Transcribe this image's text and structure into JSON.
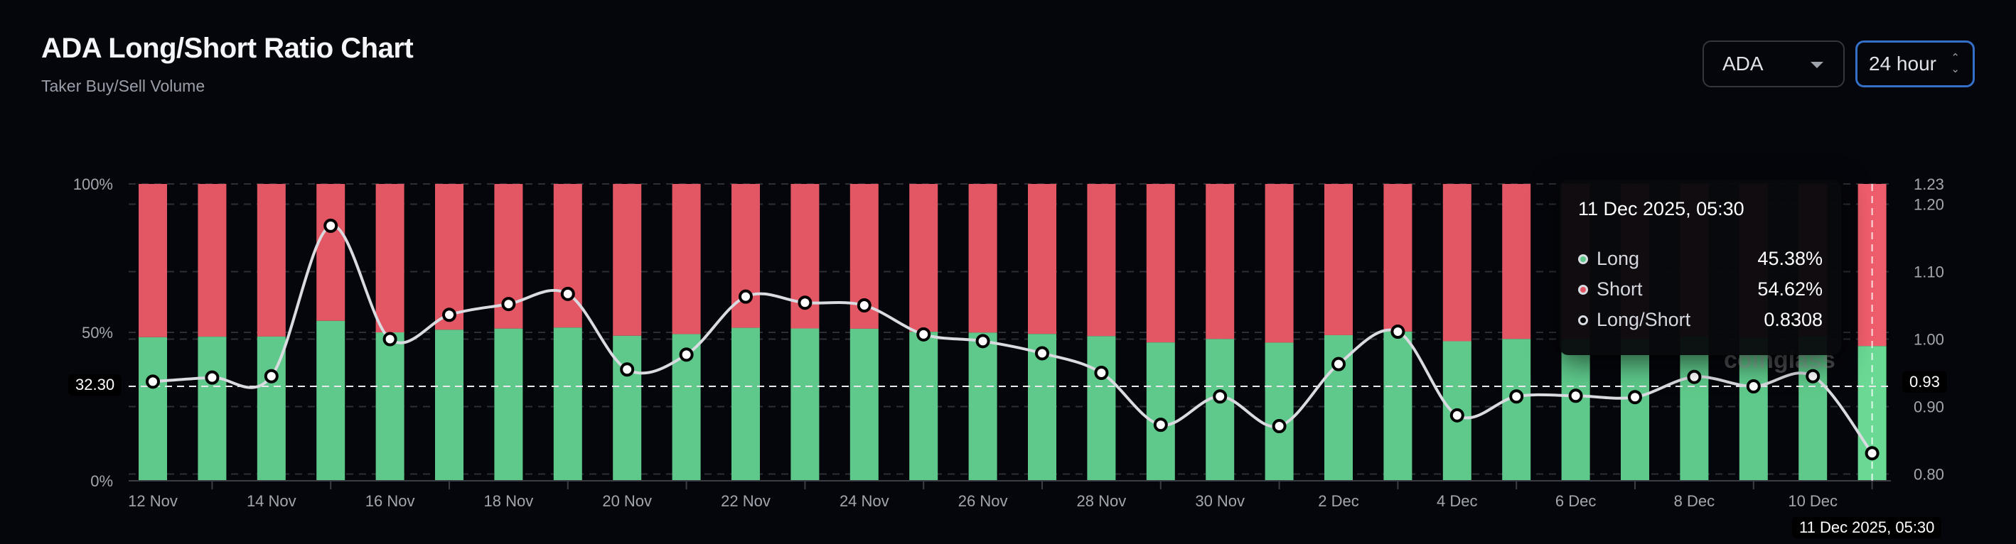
{
  "header": {
    "title": "ADA Long/Short Ratio Chart",
    "subtitle": "Taker Buy/Sell Volume"
  },
  "controls": {
    "coin_select": "ADA",
    "interval_select": "24 hour"
  },
  "colors": {
    "long": "#5ec98a",
    "short": "#e35663",
    "long_highlight": "#69d994",
    "short_highlight": "#ee5d6b",
    "ratio_line": "#d9dbe0",
    "background": "#05060b",
    "interval_border": "#3470c8"
  },
  "chart_data": {
    "type": "bar",
    "stacked": true,
    "categories": [
      "12 Nov",
      "13 Nov",
      "14 Nov",
      "15 Nov",
      "16 Nov",
      "17 Nov",
      "18 Nov",
      "19 Nov",
      "20 Nov",
      "21 Nov",
      "22 Nov",
      "23 Nov",
      "24 Nov",
      "25 Nov",
      "26 Nov",
      "27 Nov",
      "28 Nov",
      "29 Nov",
      "30 Nov",
      "1 Dec",
      "2 Dec",
      "3 Dec",
      "4 Dec",
      "5 Dec",
      "6 Dec",
      "7 Dec",
      "8 Dec",
      "9 Dec",
      "10 Dec",
      "11 Dec"
    ],
    "x_tick_labels": [
      "12 Nov",
      "14 Nov",
      "16 Nov",
      "18 Nov",
      "20 Nov",
      "22 Nov",
      "24 Nov",
      "26 Nov",
      "28 Nov",
      "30 Nov",
      "2 Dec",
      "4 Dec",
      "6 Dec",
      "8 Dec",
      "10 Dec"
    ],
    "series": [
      {
        "name": "Long",
        "unit": "%",
        "axis": "left",
        "values": [
          48.37,
          48.53,
          48.59,
          53.87,
          50.0,
          50.88,
          51.27,
          51.62,
          48.85,
          49.42,
          51.53,
          51.31,
          51.22,
          50.17,
          49.92,
          49.47,
          48.72,
          46.61,
          47.78,
          46.55,
          49.06,
          50.27,
          47.01,
          47.78,
          47.81,
          47.75,
          48.56,
          48.19,
          48.59,
          45.38
        ]
      },
      {
        "name": "Short",
        "unit": "%",
        "axis": "left",
        "values": [
          51.63,
          51.47,
          51.41,
          46.13,
          50.0,
          49.12,
          48.73,
          48.38,
          51.15,
          50.58,
          48.47,
          48.69,
          48.78,
          49.83,
          50.08,
          50.53,
          51.28,
          53.39,
          52.22,
          53.45,
          50.94,
          49.73,
          52.99,
          52.22,
          52.19,
          52.25,
          51.44,
          51.81,
          51.41,
          54.62
        ]
      },
      {
        "name": "Long/Short",
        "type": "line",
        "axis": "right",
        "values": [
          0.937,
          0.943,
          0.945,
          1.168,
          1.0,
          1.036,
          1.052,
          1.067,
          0.955,
          0.977,
          1.063,
          1.054,
          1.05,
          1.007,
          0.997,
          0.979,
          0.95,
          0.873,
          0.915,
          0.871,
          0.963,
          1.011,
          0.887,
          0.915,
          0.916,
          0.914,
          0.944,
          0.93,
          0.945,
          0.8308
        ]
      }
    ],
    "left_axis": {
      "ylim": [
        0,
        100
      ],
      "ticks": [
        "0%",
        "50%",
        "100%"
      ]
    },
    "right_axis": {
      "ylim": [
        0.79,
        1.23
      ],
      "ticks": [
        "0.80",
        "0.90",
        "1.00",
        "1.10",
        "1.20",
        "1.23"
      ]
    },
    "grid": true,
    "legend": "none"
  },
  "crosshair": {
    "left_label": "32.30",
    "right_label": "0.93",
    "right_value": 0.93,
    "x_label": "11 Dec 2025, 05:30",
    "index": 29
  },
  "tooltip": {
    "date": "11 Dec 2025, 05:30",
    "rows": [
      {
        "label": "Long",
        "value": "45.38%"
      },
      {
        "label": "Short",
        "value": "54.62%"
      },
      {
        "label": "Long/Short",
        "value": "0.8308"
      }
    ]
  },
  "watermark": "coinglass"
}
